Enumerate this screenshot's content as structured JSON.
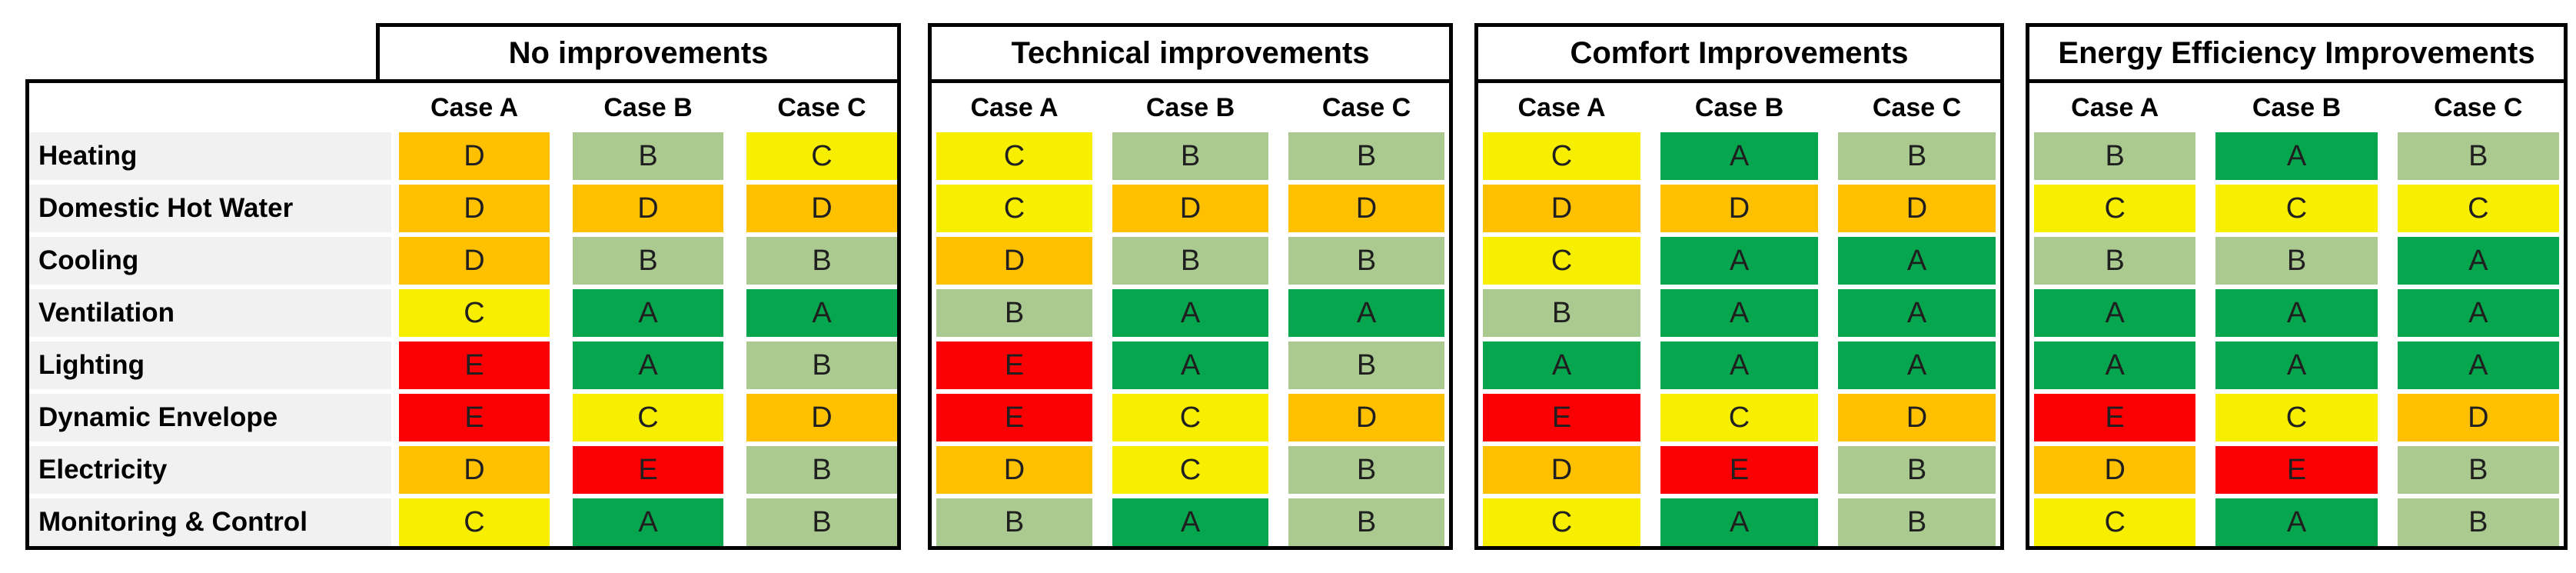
{
  "table": {
    "row_labels": [
      "Heating",
      "Domestic Hot Water",
      "Cooling",
      "Ventilation",
      "Lighting",
      "Dynamic Envelope",
      "Electricity",
      "Monitoring & Control"
    ],
    "case_headers": [
      "Case A",
      "Case B",
      "Case C"
    ],
    "groups": [
      {
        "title": "No improvements",
        "grades": [
          [
            "D",
            "B",
            "C"
          ],
          [
            "D",
            "D",
            "D"
          ],
          [
            "D",
            "B",
            "B"
          ],
          [
            "C",
            "A",
            "A"
          ],
          [
            "E",
            "A",
            "B"
          ],
          [
            "E",
            "C",
            "D"
          ],
          [
            "D",
            "E",
            "B"
          ],
          [
            "C",
            "A",
            "B"
          ]
        ]
      },
      {
        "title": "Technical improvements",
        "grades": [
          [
            "C",
            "B",
            "B"
          ],
          [
            "C",
            "D",
            "D"
          ],
          [
            "D",
            "B",
            "B"
          ],
          [
            "B",
            "A",
            "A"
          ],
          [
            "E",
            "A",
            "B"
          ],
          [
            "E",
            "C",
            "D"
          ],
          [
            "D",
            "C",
            "B"
          ],
          [
            "B",
            "A",
            "B"
          ]
        ]
      },
      {
        "title": "Comfort Improvements",
        "grades": [
          [
            "C",
            "A",
            "B"
          ],
          [
            "D",
            "D",
            "D"
          ],
          [
            "C",
            "A",
            "A"
          ],
          [
            "B",
            "A",
            "A"
          ],
          [
            "A",
            "A",
            "A"
          ],
          [
            "E",
            "C",
            "D"
          ],
          [
            "D",
            "E",
            "B"
          ],
          [
            "C",
            "A",
            "B"
          ]
        ]
      },
      {
        "title": "Energy Efficiency Improvements",
        "grades": [
          [
            "B",
            "A",
            "B"
          ],
          [
            "C",
            "C",
            "C"
          ],
          [
            "B",
            "B",
            "A"
          ],
          [
            "A",
            "A",
            "A"
          ],
          [
            "A",
            "A",
            "A"
          ],
          [
            "E",
            "C",
            "D"
          ],
          [
            "D",
            "E",
            "B"
          ],
          [
            "C",
            "A",
            "B"
          ]
        ]
      }
    ],
    "grade_colors": {
      "A": "#06A64F",
      "B": "#ABCA8F",
      "C": "#F8EE00",
      "D": "#FFC000",
      "E": "#FA0005"
    },
    "label_bg": "#f2f1f1"
  }
}
